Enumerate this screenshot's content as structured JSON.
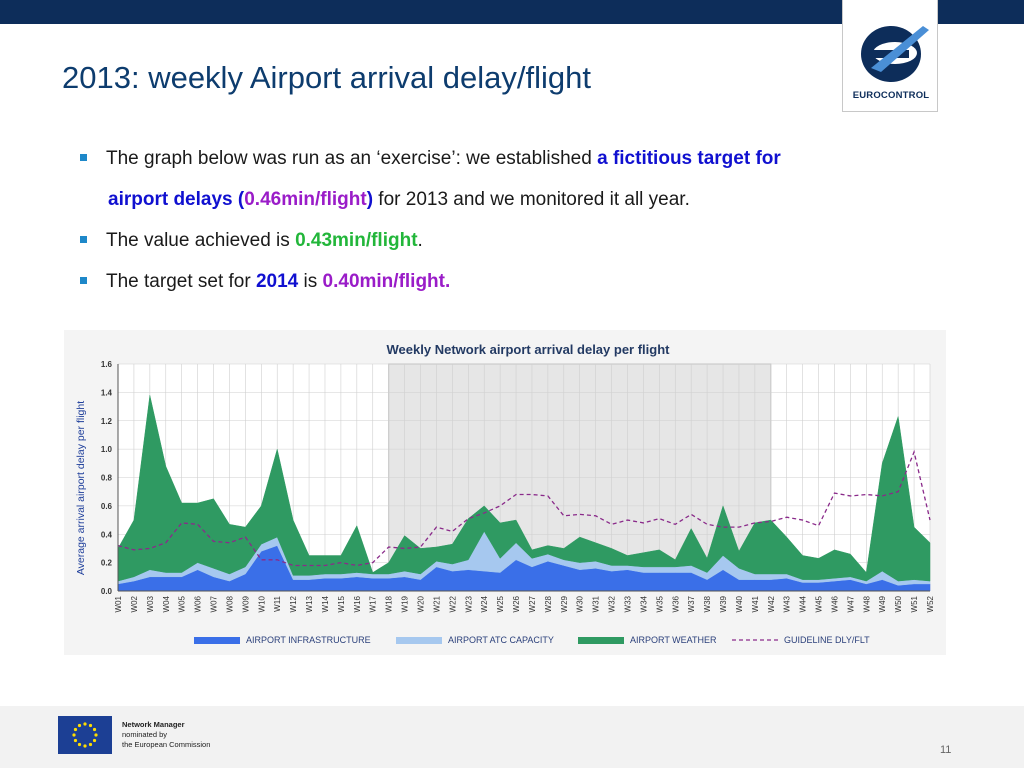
{
  "title": "2013: weekly Airport arrival delay/flight",
  "logo": {
    "text": "EUROCONTROL",
    "icon": "eurocontrol-logo"
  },
  "bullets": [
    {
      "parts": [
        {
          "text": "The graph below was run as an ‘exercise’: we established ",
          "style": "plain"
        },
        {
          "text": "a fictitious target for",
          "style": "blue"
        }
      ]
    },
    {
      "parts": [
        {
          "text": "airport delays (",
          "style": "blue"
        },
        {
          "text": "0.46min/flight",
          "style": "purple"
        },
        {
          "text": ")",
          "style": "blue"
        },
        {
          "text": " for 2013 and we monitored it all year.",
          "style": "plain"
        }
      ]
    },
    {
      "parts": [
        {
          "text": "The value achieved is ",
          "style": "plain"
        },
        {
          "text": "0.43min/flight",
          "style": "green"
        },
        {
          "text": ".",
          "style": "plain"
        }
      ]
    },
    {
      "parts": [
        {
          "text": "The target set for ",
          "style": "plain"
        },
        {
          "text": "2014",
          "style": "blue"
        },
        {
          "text": " is ",
          "style": "plain"
        },
        {
          "text": "0.40min/flight.",
          "style": "purple"
        }
      ]
    }
  ],
  "footer": {
    "org_line1": "Network Manager",
    "org_line2": "nominated by",
    "org_line3": "the European Commission",
    "flag_icon": "eu-flag-icon",
    "page_number": "11"
  },
  "colors": {
    "infrastructure": "#3a6fe8",
    "atc_capacity": "#a6c8ef",
    "weather": "#2f9a62",
    "guideline": "#8a2a8a",
    "highlight": "#e6e6e6"
  },
  "chart_data": {
    "type": "area",
    "title": "Weekly Network airport arrival delay per flight",
    "ylabel": "Average arrival airport delay per flight",
    "xlabel": "",
    "ylim": [
      0,
      1.6
    ],
    "yticks": [
      "0.0",
      "0.2",
      "0.4",
      "0.6",
      "0.8",
      "1.0",
      "1.2",
      "1.4",
      "1.6"
    ],
    "grid": true,
    "legend_position": "bottom",
    "highlight_range": [
      "W18",
      "W42"
    ],
    "categories": [
      "W01",
      "W02",
      "W03",
      "W04",
      "W05",
      "W06",
      "W07",
      "W08",
      "W09",
      "W10",
      "W11",
      "W12",
      "W13",
      "W14",
      "W15",
      "W16",
      "W17",
      "W18",
      "W19",
      "W20",
      "W21",
      "W22",
      "W23",
      "W24",
      "W25",
      "W26",
      "W27",
      "W28",
      "W29",
      "W30",
      "W31",
      "W32",
      "W33",
      "W34",
      "W35",
      "W36",
      "W37",
      "W38",
      "W39",
      "W40",
      "W41",
      "W42",
      "W43",
      "W44",
      "W45",
      "W46",
      "W47",
      "W48",
      "W49",
      "W50",
      "W51",
      "W52"
    ],
    "series": [
      {
        "name": "AIRPORT INFRASTRUCTURE",
        "kind": "stacked-area",
        "values": [
          0.05,
          0.07,
          0.1,
          0.1,
          0.1,
          0.15,
          0.1,
          0.07,
          0.12,
          0.28,
          0.32,
          0.08,
          0.08,
          0.09,
          0.09,
          0.1,
          0.09,
          0.09,
          0.1,
          0.08,
          0.17,
          0.14,
          0.15,
          0.14,
          0.13,
          0.22,
          0.17,
          0.21,
          0.18,
          0.15,
          0.16,
          0.14,
          0.15,
          0.13,
          0.13,
          0.13,
          0.13,
          0.08,
          0.15,
          0.08,
          0.08,
          0.08,
          0.09,
          0.06,
          0.06,
          0.07,
          0.08,
          0.05,
          0.08,
          0.04,
          0.05,
          0.05
        ]
      },
      {
        "name": "AIRPORT ATC CAPACITY",
        "kind": "stacked-area",
        "values": [
          0.02,
          0.03,
          0.05,
          0.03,
          0.03,
          0.05,
          0.06,
          0.05,
          0.05,
          0.05,
          0.06,
          0.03,
          0.03,
          0.03,
          0.03,
          0.03,
          0.03,
          0.03,
          0.04,
          0.04,
          0.04,
          0.05,
          0.07,
          0.28,
          0.1,
          0.12,
          0.06,
          0.05,
          0.04,
          0.05,
          0.05,
          0.04,
          0.03,
          0.04,
          0.04,
          0.04,
          0.05,
          0.05,
          0.1,
          0.08,
          0.04,
          0.04,
          0.03,
          0.02,
          0.02,
          0.02,
          0.02,
          0.02,
          0.06,
          0.03,
          0.03,
          0.02
        ]
      },
      {
        "name": "AIRPORT WEATHER",
        "kind": "stacked-area",
        "values": [
          0.23,
          0.4,
          1.23,
          0.75,
          0.49,
          0.42,
          0.49,
          0.35,
          0.28,
          0.27,
          0.62,
          0.39,
          0.14,
          0.13,
          0.13,
          0.33,
          0.01,
          0.08,
          0.25,
          0.18,
          0.1,
          0.14,
          0.29,
          0.18,
          0.25,
          0.16,
          0.06,
          0.06,
          0.08,
          0.18,
          0.13,
          0.12,
          0.07,
          0.1,
          0.12,
          0.05,
          0.26,
          0.1,
          0.35,
          0.12,
          0.36,
          0.38,
          0.26,
          0.17,
          0.15,
          0.2,
          0.16,
          0.06,
          0.76,
          1.16,
          0.37,
          0.27
        ]
      },
      {
        "name": "GUIDELINE DLY/FLT",
        "kind": "dashed-line",
        "values": [
          0.32,
          0.29,
          0.3,
          0.34,
          0.48,
          0.47,
          0.35,
          0.34,
          0.38,
          0.22,
          0.22,
          0.18,
          0.18,
          0.18,
          0.2,
          0.18,
          0.2,
          0.31,
          0.3,
          0.31,
          0.45,
          0.42,
          0.51,
          0.55,
          0.6,
          0.68,
          0.68,
          0.67,
          0.53,
          0.54,
          0.53,
          0.47,
          0.5,
          0.48,
          0.51,
          0.47,
          0.54,
          0.47,
          0.45,
          0.45,
          0.48,
          0.49,
          0.52,
          0.5,
          0.46,
          0.69,
          0.67,
          0.68,
          0.67,
          0.7,
          0.98,
          0.5
        ]
      }
    ]
  }
}
